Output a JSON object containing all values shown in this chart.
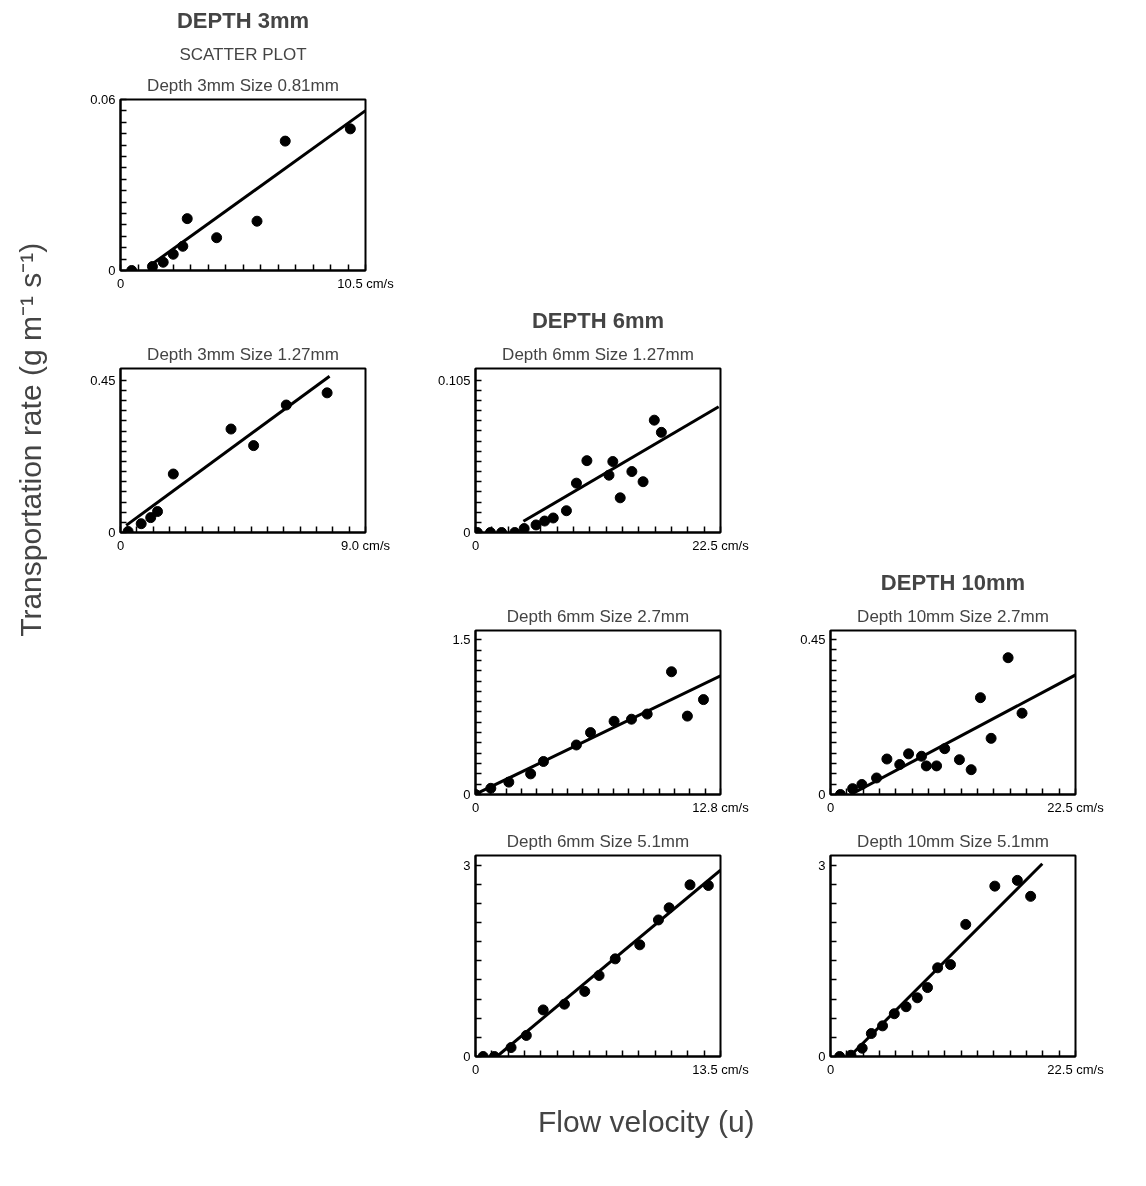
{
  "chart_data": [
    {
      "type": "scatter",
      "title": "Depth 3mm Size 0.81mm",
      "annotations": [
        "DEPTH 3mm",
        "SCATTER PLOT"
      ],
      "xlim": [
        0,
        10.5
      ],
      "ylim": [
        0,
        0.06
      ],
      "xticks": [
        0,
        {
          "value": 0.75,
          "label": null
        },
        {
          "value": 1.5,
          "label": null
        },
        {
          "value": 2.25,
          "label": null
        },
        {
          "value": 3,
          "label": null
        },
        {
          "value": 3.75,
          "label": null
        },
        {
          "value": 4.5,
          "label": null
        },
        {
          "value": 5.25,
          "label": null
        },
        {
          "value": 6,
          "label": null
        },
        {
          "value": 6.75,
          "label": null
        },
        {
          "value": 7.5,
          "label": null
        },
        {
          "value": 8.25,
          "label": null
        },
        {
          "value": 9,
          "label": null
        },
        {
          "value": 9.75,
          "label": null
        },
        {
          "value": 10.5,
          "label": "10.5 cm/s"
        }
      ],
      "yticks": [
        0,
        {
          "value": 0.004,
          "label": null
        },
        {
          "value": 0.008,
          "label": null
        },
        {
          "value": 0.012,
          "label": null
        },
        {
          "value": 0.016,
          "label": null
        },
        {
          "value": 0.02,
          "label": null
        },
        {
          "value": 0.024,
          "label": null
        },
        {
          "value": 0.028,
          "label": null
        },
        {
          "value": 0.032,
          "label": null
        },
        {
          "value": 0.036,
          "label": null
        },
        {
          "value": 0.04,
          "label": null
        },
        {
          "value": 0.044,
          "label": null
        },
        {
          "value": 0.048,
          "label": null
        },
        {
          "value": 0.052,
          "label": null
        },
        {
          "value": 0.056,
          "label": null
        },
        0.06
      ],
      "series": [
        {
          "type": "scatter",
          "marker": "circle",
          "color": "#000000",
          "x": [
            0.48,
            1.37,
            1.83,
            2.26,
            2.67,
            2.86,
            4.12,
            5.85,
            7.06,
            9.85
          ],
          "values": [
            0,
            0.0014,
            0.0029,
            0.0057,
            0.0085,
            0.0182,
            0.0115,
            0.0173,
            0.0454,
            0.0497
          ]
        },
        {
          "type": "line",
          "color": "#000000",
          "x": [
            1.21,
            10.5
          ],
          "values": [
            0.0014,
            0.0561
          ]
        }
      ]
    },
    {
      "type": "scatter",
      "title": "Depth 3mm Size 1.27mm",
      "xlim": [
        0,
        9
      ],
      "ylim": [
        0,
        0.485
      ],
      "xticks": [
        0,
        {
          "value": 0.6,
          "label": null
        },
        {
          "value": 1.2,
          "label": null
        },
        {
          "value": 1.8,
          "label": null
        },
        {
          "value": 2.4,
          "label": null
        },
        {
          "value": 3,
          "label": null
        },
        {
          "value": 3.6,
          "label": null
        },
        {
          "value": 4.2,
          "label": null
        },
        {
          "value": 4.8,
          "label": null
        },
        {
          "value": 5.4,
          "label": null
        },
        {
          "value": 6,
          "label": null
        },
        {
          "value": 6.6,
          "label": null
        },
        {
          "value": 7.2,
          "label": null
        },
        {
          "value": 7.8,
          "label": null
        },
        {
          "value": 8.4,
          "label": null
        },
        {
          "value": 9,
          "label": "9.0 cm/s"
        }
      ],
      "yticks": [
        0,
        {
          "value": 0.03,
          "label": null
        },
        {
          "value": 0.06,
          "label": null
        },
        {
          "value": 0.09,
          "label": null
        },
        {
          "value": 0.12,
          "label": null
        },
        {
          "value": 0.15,
          "label": null
        },
        {
          "value": 0.18,
          "label": null
        },
        {
          "value": 0.21,
          "label": null
        },
        {
          "value": 0.24,
          "label": null
        },
        {
          "value": 0.27,
          "label": null
        },
        {
          "value": 0.3,
          "label": null
        },
        {
          "value": 0.33,
          "label": null
        },
        {
          "value": 0.36,
          "label": null
        },
        {
          "value": 0.39,
          "label": null
        },
        {
          "value": 0.42,
          "label": null
        },
        0.45
      ],
      "series": [
        {
          "type": "scatter",
          "marker": "circle",
          "color": "#000000",
          "x": [
            0.28,
            0.76,
            1.11,
            1.36,
            1.94,
            4.06,
            4.89,
            6.09,
            7.59
          ],
          "values": [
            0.003,
            0.026,
            0.044,
            0.062,
            0.173,
            0.306,
            0.257,
            0.377,
            0.413
          ]
        },
        {
          "type": "line",
          "color": "#000000",
          "x": [
            0.21,
            7.68
          ],
          "values": [
            0.021,
            0.462
          ]
        }
      ]
    },
    {
      "type": "scatter",
      "title": "Depth 6mm Size 1.27mm",
      "annotations": [
        "DEPTH 6mm"
      ],
      "xlim": [
        0,
        22.5
      ],
      "ylim": [
        0,
        0.113
      ],
      "xticks": [
        0,
        {
          "value": 1.5,
          "label": null
        },
        {
          "value": 3,
          "label": null
        },
        {
          "value": 4.5,
          "label": null
        },
        {
          "value": 6,
          "label": null
        },
        {
          "value": 7.5,
          "label": null
        },
        {
          "value": 9,
          "label": null
        },
        {
          "value": 10.5,
          "label": null
        },
        {
          "value": 12,
          "label": null
        },
        {
          "value": 13.5,
          "label": null
        },
        {
          "value": 15,
          "label": null
        },
        {
          "value": 16.5,
          "label": null
        },
        {
          "value": 18,
          "label": null
        },
        {
          "value": 19.5,
          "label": null
        },
        {
          "value": 21,
          "label": null
        },
        {
          "value": 22.5,
          "label": "22.5 cm/s"
        }
      ],
      "yticks": [
        0,
        {
          "value": 0.007,
          "label": null
        },
        {
          "value": 0.014,
          "label": null
        },
        {
          "value": 0.021,
          "label": null
        },
        {
          "value": 0.028,
          "label": null
        },
        {
          "value": 0.035,
          "label": null
        },
        {
          "value": 0.042,
          "label": null
        },
        {
          "value": 0.049,
          "label": null
        },
        {
          "value": 0.056,
          "label": null
        },
        {
          "value": 0.063,
          "label": null
        },
        {
          "value": 0.07,
          "label": null
        },
        {
          "value": 0.077,
          "label": null
        },
        {
          "value": 0.084,
          "label": null
        },
        {
          "value": 0.091,
          "label": null
        },
        {
          "value": 0.098,
          "label": null
        },
        0.105
      ],
      "series": [
        {
          "type": "scatter",
          "marker": "circle",
          "color": "#000000",
          "x": [
            0.17,
            1.37,
            2.4,
            3.61,
            4.47,
            5.56,
            6.35,
            7.14,
            8.35,
            9.27,
            10.23,
            12.26,
            12.61,
            13.29,
            14.36,
            15.39,
            16.42,
            17.07
          ],
          "values": [
            0,
            0,
            0,
            0,
            0.0027,
            0.0052,
            0.0079,
            0.01,
            0.015,
            0.034,
            0.0495,
            0.0395,
            0.0489,
            0.0239,
            0.042,
            0.035,
            0.0774,
            0.069
          ]
        },
        {
          "type": "line",
          "color": "#000000",
          "x": [
            4.4,
            22.33
          ],
          "values": [
            0.0077,
            0.0867
          ]
        }
      ]
    },
    {
      "type": "scatter",
      "title": "Depth 6mm Size 2.7mm",
      "xlim": [
        0,
        12.8
      ],
      "ylim": [
        0,
        1.59
      ],
      "xticks": [
        0,
        {
          "value": 0.8,
          "label": null
        },
        {
          "value": 1.6,
          "label": null
        },
        {
          "value": 2.4,
          "label": null
        },
        {
          "value": 3.2,
          "label": null
        },
        {
          "value": 4,
          "label": null
        },
        {
          "value": 4.8,
          "label": null
        },
        {
          "value": 5.6,
          "label": null
        },
        {
          "value": 6.4,
          "label": null
        },
        {
          "value": 7.2,
          "label": null
        },
        {
          "value": 8,
          "label": null
        },
        {
          "value": 8.8,
          "label": null
        },
        {
          "value": 9.6,
          "label": null
        },
        {
          "value": 10.4,
          "label": null
        },
        {
          "value": 11.2,
          "label": null
        },
        {
          "value": 12,
          "label": null
        },
        {
          "value": 12.8,
          "label": "12.8 cm/s"
        }
      ],
      "yticks": [
        0,
        {
          "value": 0.1,
          "label": null
        },
        {
          "value": 0.2,
          "label": null
        },
        {
          "value": 0.3,
          "label": null
        },
        {
          "value": 0.4,
          "label": null
        },
        {
          "value": 0.5,
          "label": null
        },
        {
          "value": 0.6,
          "label": null
        },
        {
          "value": 0.7,
          "label": null
        },
        {
          "value": 0.8,
          "label": null
        },
        {
          "value": 0.9,
          "label": null
        },
        {
          "value": 1.0,
          "label": null
        },
        {
          "value": 1.1,
          "label": null
        },
        {
          "value": 1.2,
          "label": null
        },
        {
          "value": 1.3,
          "label": null
        },
        {
          "value": 1.4,
          "label": null
        },
        1.5
      ],
      "series": [
        {
          "type": "scatter",
          "marker": "circle",
          "color": "#000000",
          "x": [
            0,
            0.8,
            1.74,
            2.88,
            3.55,
            5.27,
            6.01,
            7.24,
            8.15,
            8.97,
            10.24,
            11.07,
            11.91
          ],
          "values": [
            0,
            0.06,
            0.12,
            0.2,
            0.32,
            0.48,
            0.6,
            0.71,
            0.73,
            0.78,
            1.19,
            0.76,
            0.92
          ]
        },
        {
          "type": "line",
          "color": "#000000",
          "x": [
            0.19,
            12.8
          ],
          "values": [
            0.02,
            1.15
          ]
        }
      ]
    },
    {
      "type": "scatter",
      "title": "Depth 10mm Size 2.7mm",
      "annotations": [
        "DEPTH 10mm"
      ],
      "xlim": [
        0,
        22.5
      ],
      "ylim": [
        0,
        0.476
      ],
      "xticks": [
        0,
        {
          "value": 1.5,
          "label": null
        },
        {
          "value": 3,
          "label": null
        },
        {
          "value": 4.5,
          "label": null
        },
        {
          "value": 6,
          "label": null
        },
        {
          "value": 7.5,
          "label": null
        },
        {
          "value": 9,
          "label": null
        },
        {
          "value": 10.5,
          "label": null
        },
        {
          "value": 12,
          "label": null
        },
        {
          "value": 13.5,
          "label": null
        },
        {
          "value": 15,
          "label": null
        },
        {
          "value": 16.5,
          "label": null
        },
        {
          "value": 18,
          "label": null
        },
        {
          "value": 19.5,
          "label": null
        },
        {
          "value": 21,
          "label": null
        },
        {
          "value": 22.5,
          "label": "22.5 cm/s"
        }
      ],
      "yticks": [
        0,
        {
          "value": 0.03,
          "label": null
        },
        {
          "value": 0.06,
          "label": null
        },
        {
          "value": 0.09,
          "label": null
        },
        {
          "value": 0.12,
          "label": null
        },
        {
          "value": 0.15,
          "label": null
        },
        {
          "value": 0.18,
          "label": null
        },
        {
          "value": 0.21,
          "label": null
        },
        {
          "value": 0.24,
          "label": null
        },
        {
          "value": 0.27,
          "label": null
        },
        {
          "value": 0.3,
          "label": null
        },
        {
          "value": 0.33,
          "label": null
        },
        {
          "value": 0.36,
          "label": null
        },
        {
          "value": 0.39,
          "label": null
        },
        {
          "value": 0.42,
          "label": null
        },
        0.45
      ],
      "series": [
        {
          "type": "scatter",
          "marker": "circle",
          "color": "#000000",
          "x": [
            0.91,
            2.03,
            2.88,
            4.23,
            5.18,
            6.36,
            7.17,
            8.36,
            8.8,
            9.74,
            10.49,
            11.84,
            12.92,
            13.77,
            14.75,
            16.31,
            17.59
          ],
          "values": [
            0,
            0.017,
            0.029,
            0.048,
            0.103,
            0.087,
            0.118,
            0.111,
            0.083,
            0.083,
            0.133,
            0.101,
            0.072,
            0.281,
            0.163,
            0.397,
            0.236
          ]
        },
        {
          "type": "line",
          "color": "#000000",
          "x": [
            1.86,
            22.5
          ],
          "values": [
            0,
            0.347
          ]
        }
      ]
    },
    {
      "type": "scatter",
      "title": "Depth 6mm Size 5.1mm",
      "xlim": [
        0,
        13.5
      ],
      "ylim": [
        0,
        3.15
      ],
      "xticks": [
        0,
        {
          "value": 0.9,
          "label": null
        },
        {
          "value": 1.8,
          "label": null
        },
        {
          "value": 2.7,
          "label": null
        },
        {
          "value": 3.6,
          "label": null
        },
        {
          "value": 4.5,
          "label": null
        },
        {
          "value": 5.4,
          "label": null
        },
        {
          "value": 6.3,
          "label": null
        },
        {
          "value": 7.2,
          "label": null
        },
        {
          "value": 8.1,
          "label": null
        },
        {
          "value": 9,
          "label": null
        },
        {
          "value": 9.9,
          "label": null
        },
        {
          "value": 10.8,
          "label": null
        },
        {
          "value": 11.7,
          "label": null
        },
        {
          "value": 12.6,
          "label": null
        },
        {
          "value": 13.5,
          "label": "13.5 cm/s"
        }
      ],
      "yticks": [
        0,
        {
          "value": 0.3,
          "label": null
        },
        {
          "value": 0.6,
          "label": null
        },
        {
          "value": 0.9,
          "label": null
        },
        {
          "value": 1.2,
          "label": null
        },
        {
          "value": 1.5,
          "label": null
        },
        {
          "value": 1.8,
          "label": null
        },
        {
          "value": 2.1,
          "label": null
        },
        {
          "value": 2.4,
          "label": null
        },
        {
          "value": 2.7,
          "label": null
        },
        3
      ],
      "series": [
        {
          "type": "scatter",
          "marker": "circle",
          "color": "#000000",
          "x": [
            0.42,
            1.04,
            1.96,
            2.8,
            3.73,
            4.9,
            6.02,
            6.81,
            7.7,
            9.05,
            10.08,
            10.67,
            11.82,
            12.83
          ],
          "values": [
            0,
            0,
            0.14,
            0.33,
            0.73,
            0.82,
            1.02,
            1.27,
            1.53,
            1.75,
            2.14,
            2.33,
            2.69,
            2.68
          ]
        },
        {
          "type": "line",
          "color": "#000000",
          "x": [
            1.26,
            13.5
          ],
          "values": [
            0.02,
            2.92
          ]
        }
      ]
    },
    {
      "type": "scatter",
      "title": "Depth 10mm Size 5.1mm",
      "xlim": [
        0,
        22.5
      ],
      "ylim": [
        0,
        3.15
      ],
      "xticks": [
        0,
        {
          "value": 1.5,
          "label": null
        },
        {
          "value": 3,
          "label": null
        },
        {
          "value": 4.5,
          "label": null
        },
        {
          "value": 6,
          "label": null
        },
        {
          "value": 7.5,
          "label": null
        },
        {
          "value": 9,
          "label": null
        },
        {
          "value": 10.5,
          "label": null
        },
        {
          "value": 12,
          "label": null
        },
        {
          "value": 13.5,
          "label": null
        },
        {
          "value": 15,
          "label": null
        },
        {
          "value": 16.5,
          "label": null
        },
        {
          "value": 18,
          "label": null
        },
        {
          "value": 19.5,
          "label": null
        },
        {
          "value": 21,
          "label": null
        },
        {
          "value": 22.5,
          "label": "22.5 cm/s"
        }
      ],
      "yticks": [
        0,
        {
          "value": 0.3,
          "label": null
        },
        {
          "value": 0.6,
          "label": null
        },
        {
          "value": 0.9,
          "label": null
        },
        {
          "value": 1.2,
          "label": null
        },
        {
          "value": 1.5,
          "label": null
        },
        {
          "value": 1.8,
          "label": null
        },
        {
          "value": 2.1,
          "label": null
        },
        {
          "value": 2.4,
          "label": null
        },
        {
          "value": 2.7,
          "label": null
        },
        3
      ],
      "series": [
        {
          "type": "scatter",
          "marker": "circle",
          "color": "#000000",
          "x": [
            0.84,
            1.88,
            2.91,
            3.75,
            4.78,
            5.86,
            6.94,
            7.97,
            8.91,
            9.84,
            11.02,
            12.42,
            15.09,
            17.16,
            18.38
          ],
          "values": [
            0,
            0.02,
            0.13,
            0.36,
            0.48,
            0.67,
            0.78,
            0.92,
            1.08,
            1.39,
            1.44,
            2.07,
            2.67,
            2.76,
            2.51
          ]
        },
        {
          "type": "line",
          "color": "#000000",
          "x": [
            1.88,
            19.45
          ],
          "values": [
            0.02,
            3.02
          ]
        }
      ]
    },
    {
      "type": "other",
      "xlabel": "Flow velocity (u)",
      "ylabel": "Transportation rate (g m⁻¹ s⁻¹)"
    }
  ]
}
